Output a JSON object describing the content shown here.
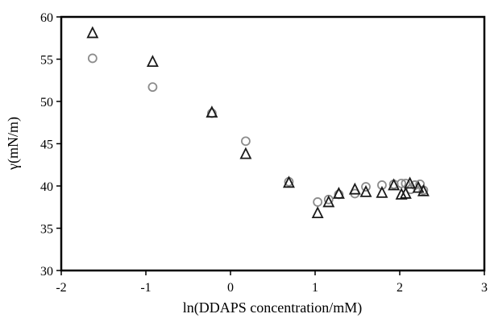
{
  "chart_data": {
    "type": "scatter",
    "title": "",
    "xlabel": "ln(DDAPS concentration/mM)",
    "ylabel": "γ(mN/m)",
    "xlim": [
      -2,
      3
    ],
    "ylim": [
      30,
      60
    ],
    "xticks": [
      "-2",
      "-1",
      "0",
      "1",
      "2",
      "3"
    ],
    "yticks": [
      "30",
      "35",
      "40",
      "45",
      "50",
      "55",
      "60"
    ],
    "grid": false,
    "legend": "none",
    "series": [
      {
        "marker": "circle",
        "color": "#8c8c8c",
        "points": [
          [
            -1.63,
            55.1
          ],
          [
            -0.92,
            51.7
          ],
          [
            -0.22,
            48.6
          ],
          [
            0.18,
            45.3
          ],
          [
            0.69,
            40.5
          ],
          [
            1.03,
            38.1
          ],
          [
            1.16,
            38.4
          ],
          [
            1.28,
            39.0
          ],
          [
            1.47,
            39.1
          ],
          [
            1.6,
            39.9
          ],
          [
            1.79,
            40.1
          ],
          [
            1.93,
            40.2
          ],
          [
            2.02,
            40.3
          ],
          [
            2.07,
            40.3
          ],
          [
            2.13,
            39.6
          ],
          [
            2.18,
            40.1
          ],
          [
            2.24,
            40.2
          ],
          [
            2.28,
            39.5
          ]
        ]
      },
      {
        "marker": "triangle",
        "color": "#1a1a1a",
        "points": [
          [
            -1.63,
            58.1
          ],
          [
            -0.92,
            54.7
          ],
          [
            -0.22,
            48.7
          ],
          [
            0.18,
            43.8
          ],
          [
            0.69,
            40.4
          ],
          [
            1.03,
            36.8
          ],
          [
            1.16,
            38.1
          ],
          [
            1.28,
            39.1
          ],
          [
            1.47,
            39.6
          ],
          [
            1.6,
            39.3
          ],
          [
            1.79,
            39.2
          ],
          [
            1.93,
            40.1
          ],
          [
            2.02,
            39.0
          ],
          [
            2.07,
            39.1
          ],
          [
            2.12,
            40.3
          ],
          [
            2.22,
            39.8
          ],
          [
            2.28,
            39.4
          ]
        ]
      }
    ]
  }
}
